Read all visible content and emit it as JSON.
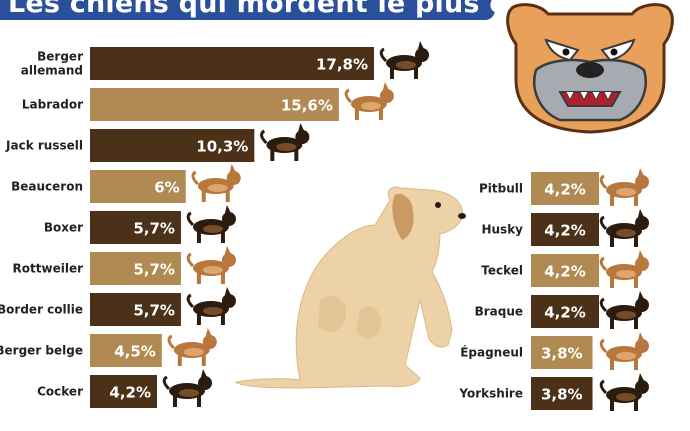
{
  "title": "Les chiens qui mordent le plus en France",
  "colors": {
    "dark": "#4a3118",
    "light": "#b08a52",
    "accent": "#2a4f9b"
  },
  "chart_data": {
    "type": "bar",
    "orientation": "horizontal",
    "unit": "%",
    "left_column": [
      {
        "label": [
          "Berger",
          "allemand"
        ],
        "value": 17.8,
        "display": "17,8%",
        "shade": "dark"
      },
      {
        "label": [
          "Labrador"
        ],
        "value": 15.6,
        "display": "15,6%",
        "shade": "light"
      },
      {
        "label": [
          "Jack russell"
        ],
        "value": 10.3,
        "display": "10,3%",
        "shade": "dark"
      },
      {
        "label": [
          "Beauceron"
        ],
        "value": 6,
        "display": "6%",
        "shade": "light"
      },
      {
        "label": [
          "Boxer"
        ],
        "value": 5.7,
        "display": "5,7%",
        "shade": "dark"
      },
      {
        "label": [
          "Rottweiler"
        ],
        "value": 5.7,
        "display": "5,7%",
        "shade": "light"
      },
      {
        "label": [
          "Border collie"
        ],
        "value": 5.7,
        "display": "5,7%",
        "shade": "dark"
      },
      {
        "label": [
          "Berger belge"
        ],
        "value": 4.5,
        "display": "4,5%",
        "shade": "light"
      },
      {
        "label": [
          "Cocker"
        ],
        "value": 4.2,
        "display": "4,2%",
        "shade": "dark"
      }
    ],
    "right_column": [
      {
        "label": [
          "Pitbull"
        ],
        "value": 4.2,
        "display": "4,2%",
        "shade": "light"
      },
      {
        "label": [
          "Husky"
        ],
        "value": 4.2,
        "display": "4,2%",
        "shade": "dark"
      },
      {
        "label": [
          "Teckel"
        ],
        "value": 4.2,
        "display": "4,2%",
        "shade": "light"
      },
      {
        "label": [
          "Braque"
        ],
        "value": 4.2,
        "display": "4,2%",
        "shade": "dark"
      },
      {
        "label": [
          "Épagneul"
        ],
        "value": 3.8,
        "display": "3,8%",
        "shade": "light"
      },
      {
        "label": [
          "Yorkshire"
        ],
        "value": 3.8,
        "display": "3,8%",
        "shade": "dark"
      }
    ]
  },
  "illustrations": [
    "german-shepherd-icon",
    "labrador-icon",
    "jack-russell-icon",
    "beauceron-icon",
    "boxer-icon",
    "rottweiler-icon",
    "border-collie-icon",
    "belgian-shepherd-icon",
    "cocker-icon",
    "pitbull-icon",
    "husky-icon",
    "dachshund-icon",
    "braque-icon",
    "spaniel-icon",
    "yorkshire-icon",
    "bulldog-mascot-icon",
    "sitting-dog-illustration"
  ]
}
